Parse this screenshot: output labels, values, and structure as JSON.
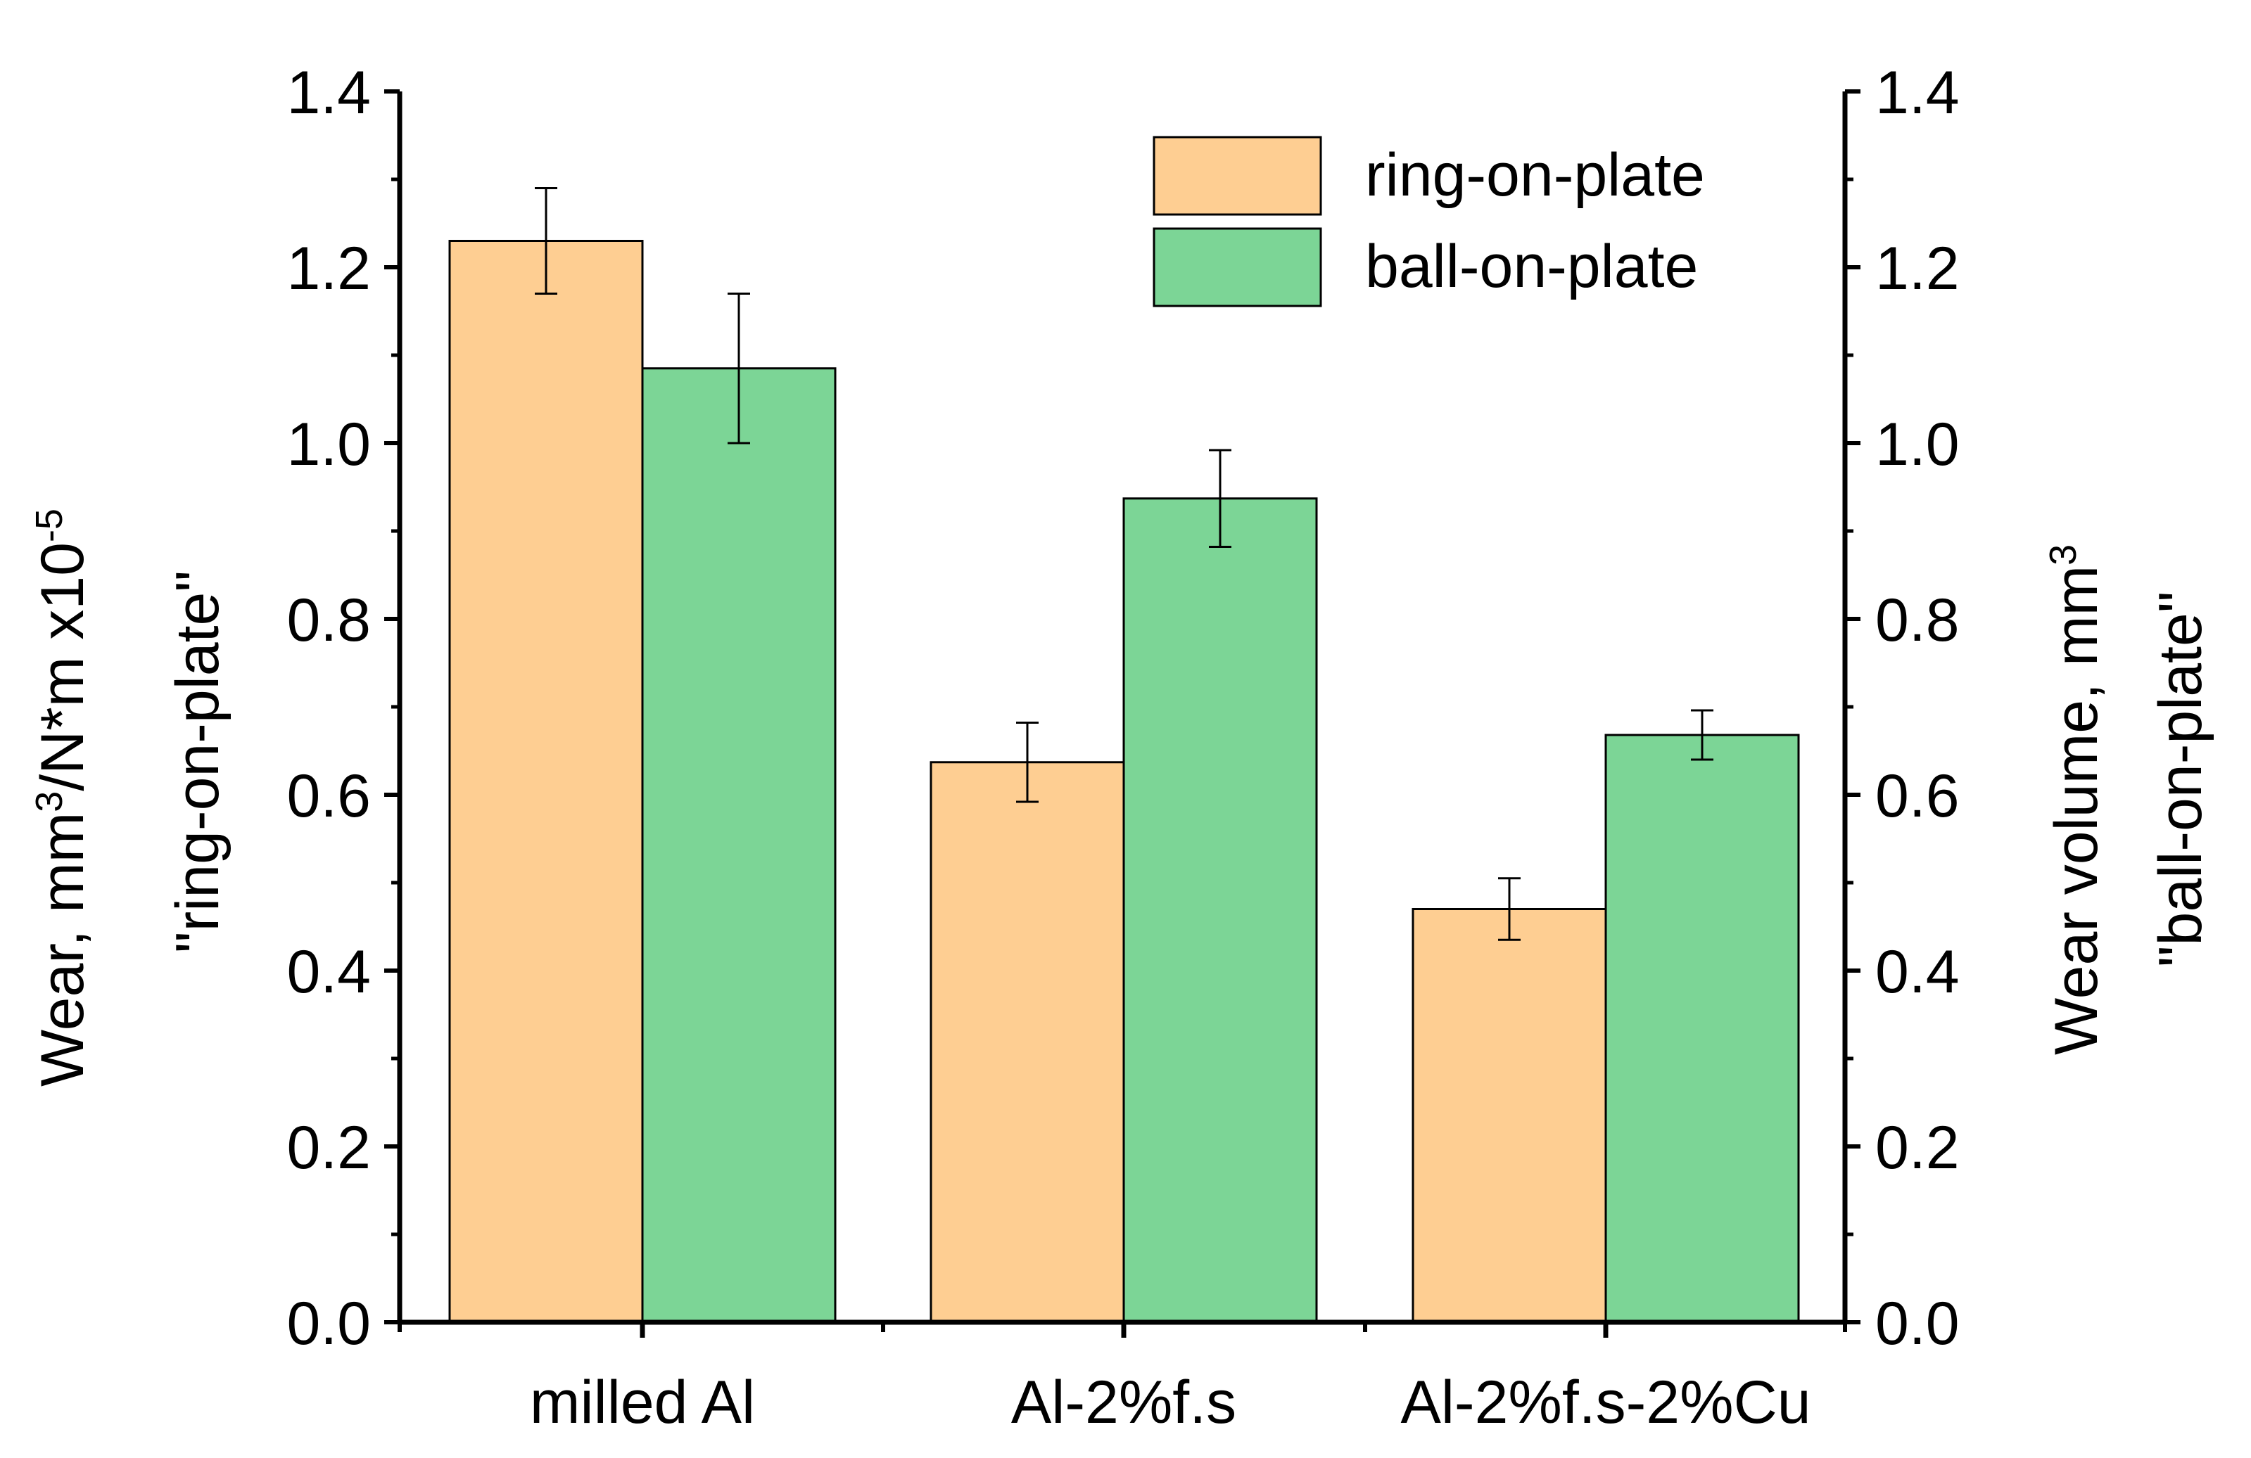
{
  "chart_data": {
    "type": "bar",
    "categories": [
      "milled Al",
      "Al-2%f.s",
      "Al-2%f.s-2%Cu"
    ],
    "series": [
      {
        "name": "ring-on-plate",
        "axis": "left",
        "color": "#FECE92",
        "values": [
          1.23,
          0.637,
          0.47
        ],
        "errors": [
          0.06,
          0.045,
          0.035
        ]
      },
      {
        "name": "ball-on-plate",
        "axis": "right",
        "color": "#7CD596",
        "values": [
          1.085,
          0.937,
          0.668
        ],
        "errors": [
          0.085,
          0.055,
          0.028
        ]
      }
    ],
    "ylim": [
      0.0,
      1.4
    ],
    "y2lim": [
      0.0,
      1.4
    ],
    "ticks": [
      "0.0",
      "0.2",
      "0.4",
      "0.6",
      "0.8",
      "1.0",
      "1.2",
      "1.4"
    ],
    "tick_values": [
      0.0,
      0.2,
      0.4,
      0.6,
      0.8,
      1.0,
      1.2,
      1.4
    ],
    "ylabel": {
      "line1_main": "Wear, mm",
      "line1_sup1": "3",
      "line1_mid": "/N*m x10",
      "line1_sup2": "-5",
      "line2": "\"ring-on-plate\""
    },
    "y2label": {
      "line1_main": "Wear volume, mm",
      "line1_sup": "3",
      "line2": "\"ball-on-plate\""
    },
    "xlabel": "",
    "legend_position": "top-right",
    "grid": false
  }
}
